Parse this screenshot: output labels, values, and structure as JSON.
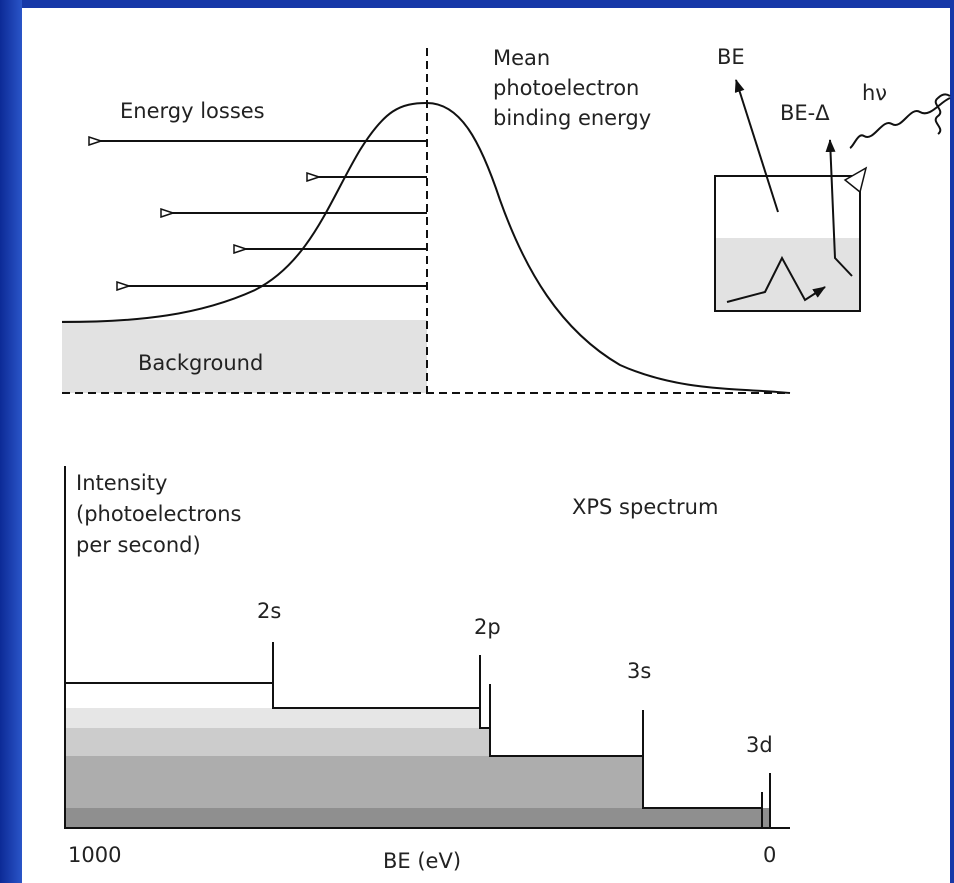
{
  "top_diagram": {
    "energy_losses": "Energy losses",
    "mean_label": [
      "Mean",
      "photoelectron",
      "binding energy"
    ],
    "background": "Background",
    "inset": {
      "be": "BE",
      "be_delta": "BE-Δ",
      "hv": "hν"
    }
  },
  "spectrum": {
    "y_label": [
      "Intensity",
      "(photoelectrons",
      "per second)"
    ],
    "title": "XPS spectrum",
    "peaks": [
      "2s",
      "2p",
      "3s",
      "3d"
    ],
    "x_left": "1000",
    "x_right": "0",
    "x_label": "BE (eV)"
  }
}
